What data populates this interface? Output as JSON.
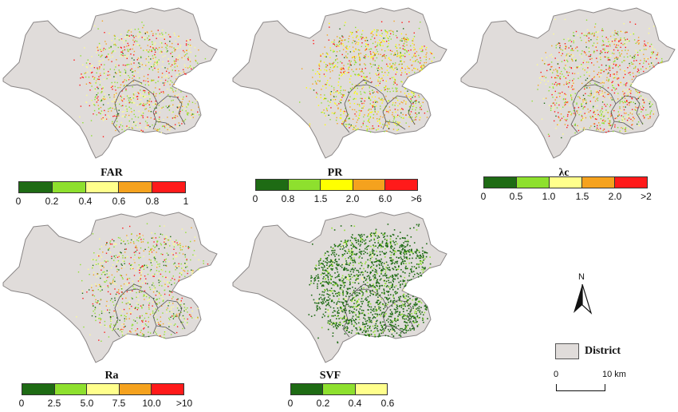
{
  "panels": [
    {
      "key": "far",
      "title": "FAR",
      "ticks": [
        "0",
        "0.2",
        "0.4",
        "0.6",
        "0.8",
        "1"
      ],
      "colors": [
        "#1e6b14",
        "#8ee02e",
        "#ffff8c",
        "#f5a21e",
        "#ff1a1a"
      ],
      "weights": [
        0.05,
        0.28,
        0.32,
        0.17,
        0.18
      ],
      "density": 0.55
    },
    {
      "key": "pr",
      "title": "PR",
      "ticks": [
        "0",
        "0.8",
        "1.5",
        "2.0",
        "6.0",
        ">6"
      ],
      "colors": [
        "#1e6b14",
        "#8ee02e",
        "#ffff00",
        "#f5a21e",
        "#ff1a1a"
      ],
      "weights": [
        0.05,
        0.28,
        0.28,
        0.27,
        0.12
      ],
      "density": 0.6
    },
    {
      "key": "lc",
      "title": "λc",
      "ticks": [
        "0",
        "0.5",
        "1.0",
        "1.5",
        "2.0",
        ">2"
      ],
      "colors": [
        "#1e6b14",
        "#8ee02e",
        "#ffff8c",
        "#f5a21e",
        "#ff1a1a"
      ],
      "weights": [
        0.05,
        0.3,
        0.22,
        0.2,
        0.23
      ],
      "density": 0.6
    },
    {
      "key": "ra",
      "title": "Ra",
      "ticks": [
        "0",
        "2.5",
        "5.0",
        "7.5",
        "10.0",
        ">10"
      ],
      "colors": [
        "#1e6b14",
        "#8ee02e",
        "#ffff8c",
        "#f5a21e",
        "#ff1a1a"
      ],
      "weights": [
        0.12,
        0.35,
        0.25,
        0.14,
        0.14
      ],
      "density": 0.5
    },
    {
      "key": "svf",
      "title": "SVF",
      "ticks": [
        "0",
        "0.2",
        "0.4",
        "0.6"
      ],
      "colors": [
        "#1e6b14",
        "#8ee02e",
        "#ffff8c"
      ],
      "weights": [
        0.8,
        0.17,
        0.03
      ],
      "density": 1.0
    }
  ],
  "legend": {
    "north": "N",
    "district": "District",
    "scale": {
      "start": "0",
      "end": "10 km"
    }
  },
  "colors": {
    "district_fill": "#e0dcda",
    "district_stroke": "#8a8686",
    "inner_boundary": "#555555"
  }
}
